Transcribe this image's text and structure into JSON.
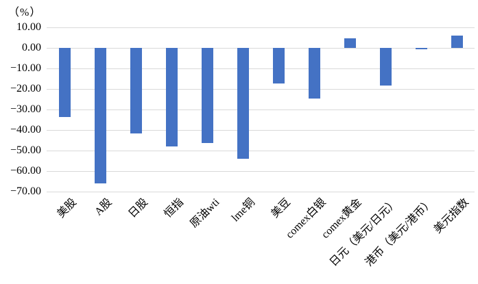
{
  "chart_data": {
    "type": "bar",
    "title": "",
    "y_axis_unit_label": "（%）",
    "categories": [
      "美股",
      "A股",
      "日股",
      "恒指",
      "原油wti",
      "lme铜",
      "美豆",
      "comex白银",
      "comex黄金",
      "日元（美元/日元）",
      "港币（美元/港币）",
      "美元指数"
    ],
    "values": [
      -33.6,
      -66.0,
      -41.7,
      -48.0,
      -46.3,
      -54.0,
      -17.3,
      -24.8,
      4.6,
      -18.3,
      -0.8,
      6.0
    ],
    "y_tick_labels": [
      "10.00",
      "0.00",
      "−10.00",
      "−20.00",
      "−30.00",
      "−40.00",
      "−50.00",
      "−60.00",
      "−70.00"
    ],
    "ylim": [
      -70,
      10
    ],
    "y_tick_step": 10,
    "grid": true,
    "legend": "none",
    "bar_color": "#4472C4",
    "gridline_color": "#D9D9D9",
    "axis_text_color": "#000000",
    "background_color": "#FFFFFF"
  }
}
